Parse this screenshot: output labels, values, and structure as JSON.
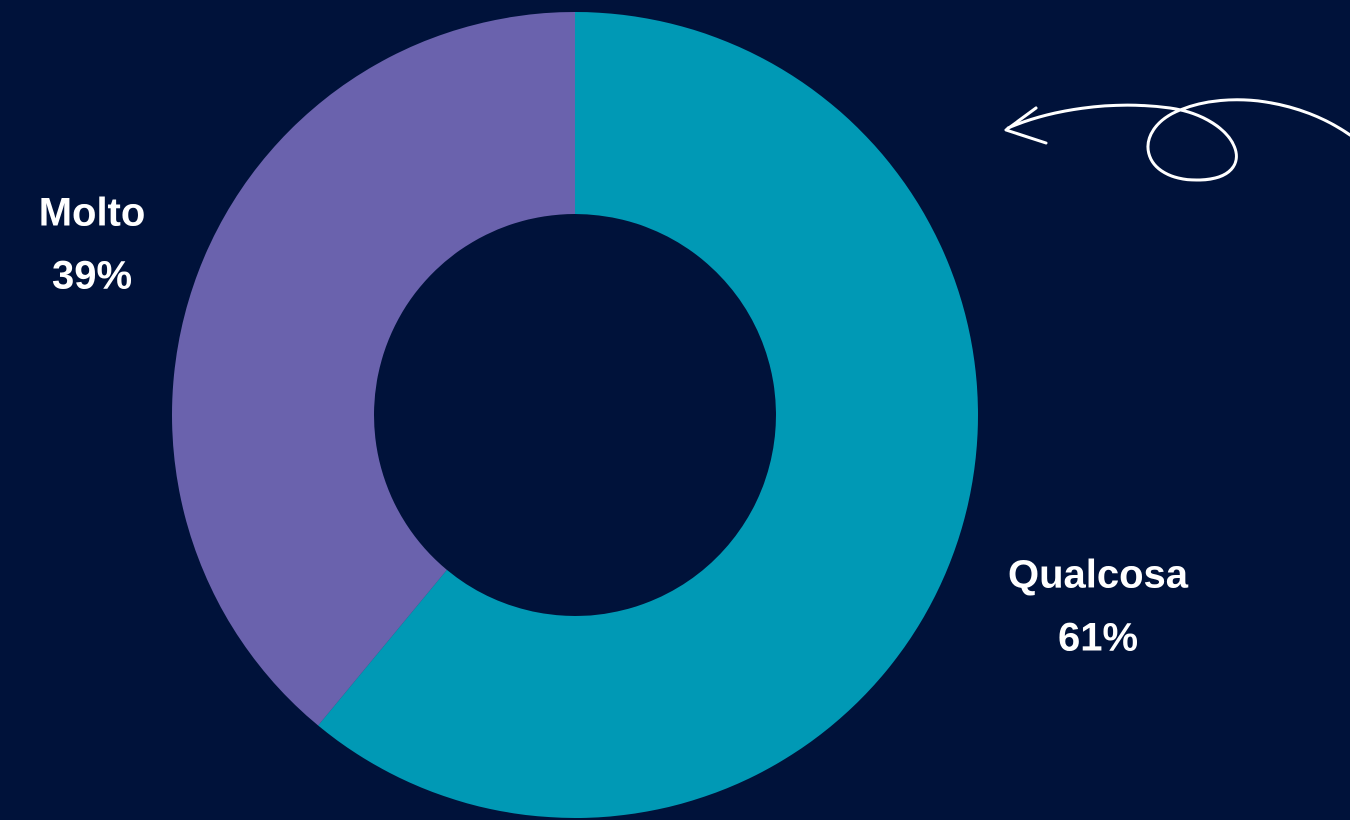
{
  "chart_data": {
    "type": "donut",
    "categories": [
      "Qualcosa",
      "Molto"
    ],
    "values": [
      61,
      39
    ],
    "value_labels": [
      "61%",
      "39%"
    ],
    "colors": [
      "#0099b5",
      "#6a62ad"
    ]
  }
}
